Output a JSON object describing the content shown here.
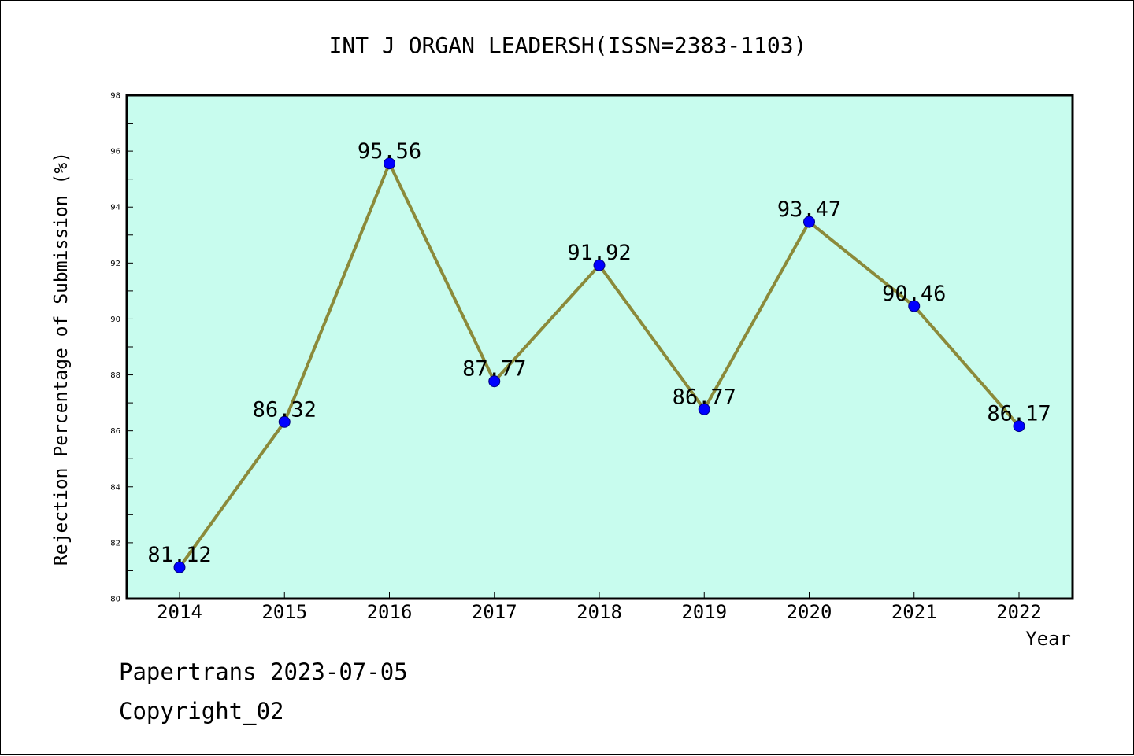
{
  "chart_data": {
    "type": "line",
    "title": "INT J ORGAN LEADERSH(ISSN=2383-1103)",
    "xlabel": "Year",
    "ylabel": "Rejection Percentage of Submission (%)",
    "categories": [
      "2014",
      "2015",
      "2016",
      "2017",
      "2018",
      "2019",
      "2020",
      "2021",
      "2022"
    ],
    "series": [
      {
        "values": [
          81.12,
          86.32,
          95.56,
          87.77,
          91.92,
          86.77,
          93.47,
          90.46,
          86.17
        ]
      }
    ],
    "data_labels": [
      "81.12",
      "86.32",
      "95.56",
      "87.77",
      "91.92",
      "86.77",
      "93.47",
      "90.46",
      "86.17"
    ],
    "ylim": [
      80,
      98
    ],
    "yticks": [
      "80",
      "82",
      "84",
      "86",
      "88",
      "90",
      "92",
      "94",
      "96",
      "98"
    ],
    "grid": false,
    "colors": {
      "plot_background": "#c8fcee",
      "line": "#8b8a3a",
      "marker": "#0000ff"
    }
  },
  "footer": {
    "source_line": "Papertrans 2023-07-05",
    "copyright_line": "Copyright_02"
  }
}
